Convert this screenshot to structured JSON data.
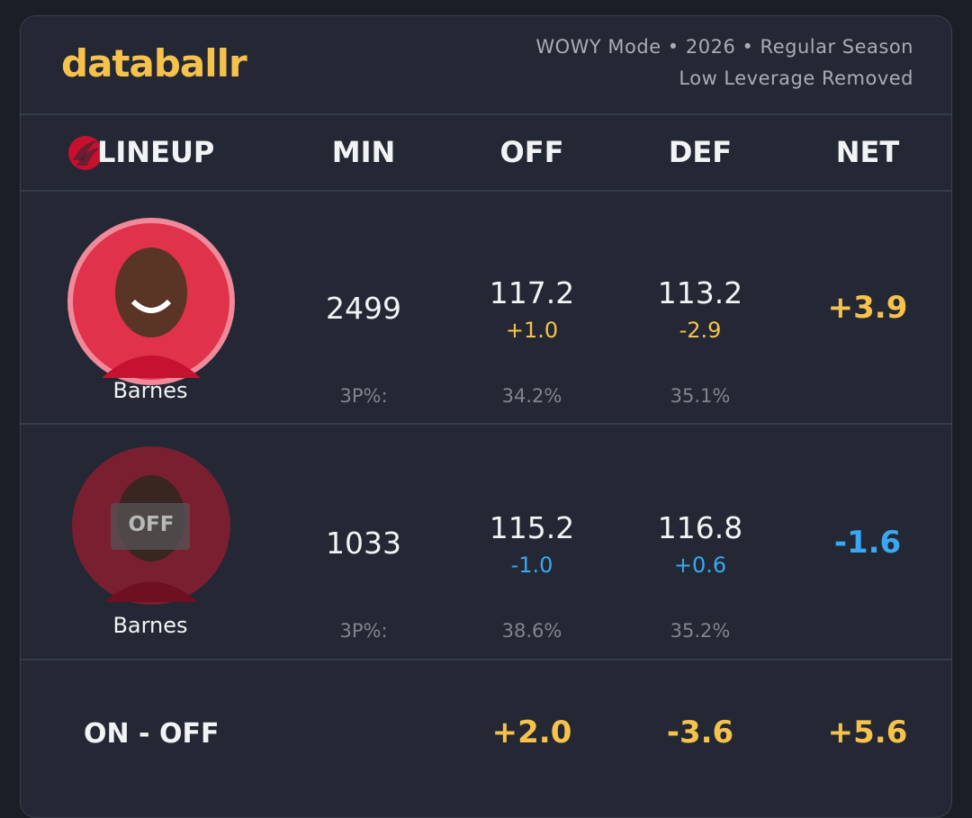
{
  "header": {
    "logo": "databallr",
    "subtitle_lines": [
      "WOWY Mode • 2026 • Regular Season",
      "Low Leverage Removed"
    ]
  },
  "table": {
    "columns": [
      "LINEUP",
      "MIN",
      "OFF",
      "DEF",
      "NET"
    ],
    "rows": [
      {
        "player": "Barnes",
        "badge": null,
        "min": "2499",
        "off": "117.2",
        "off_diff": "+1.0",
        "def": "113.2",
        "def_diff": "-2.9",
        "net": "+3.9",
        "shooting_label": "3P%:",
        "off_3p": "34.2%",
        "def_3p": "35.1%"
      },
      {
        "player": "Barnes",
        "badge": "OFF",
        "min": "1033",
        "off": "115.2",
        "off_diff": "-1.0",
        "def": "116.8",
        "def_diff": "+0.6",
        "net": "-1.6",
        "shooting_label": "3P%:",
        "off_3p": "38.6%",
        "def_3p": "35.2%"
      }
    ],
    "footer": {
      "label": "ON - OFF",
      "off": "+2.0",
      "def": "-3.6",
      "net": "+5.6"
    }
  }
}
